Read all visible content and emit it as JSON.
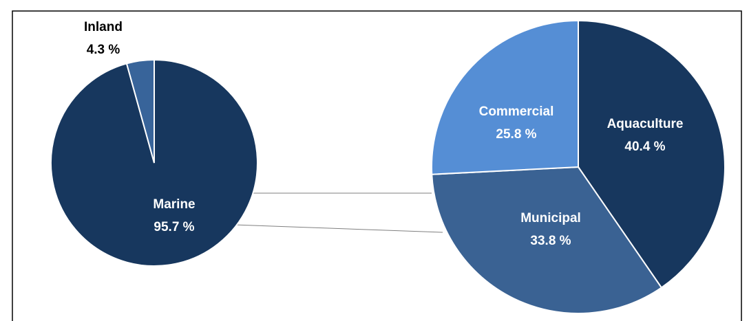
{
  "chart_data": [
    {
      "type": "pie",
      "categories": [
        "Marine",
        "Inland"
      ],
      "values": [
        95.7,
        4.3
      ],
      "value_labels": [
        "95.7 %",
        "4.3 %"
      ],
      "colors": [
        "#17375e",
        "#38649a"
      ]
    },
    {
      "type": "pie",
      "categories": [
        "Aquaculture",
        "Municipal",
        "Commercial"
      ],
      "values": [
        40.4,
        33.8,
        25.8
      ],
      "value_labels": [
        "40.4 %",
        "33.8 %",
        "25.8 %"
      ],
      "colors": [
        "#17375e",
        "#3a6293",
        "#558ed5"
      ]
    }
  ]
}
